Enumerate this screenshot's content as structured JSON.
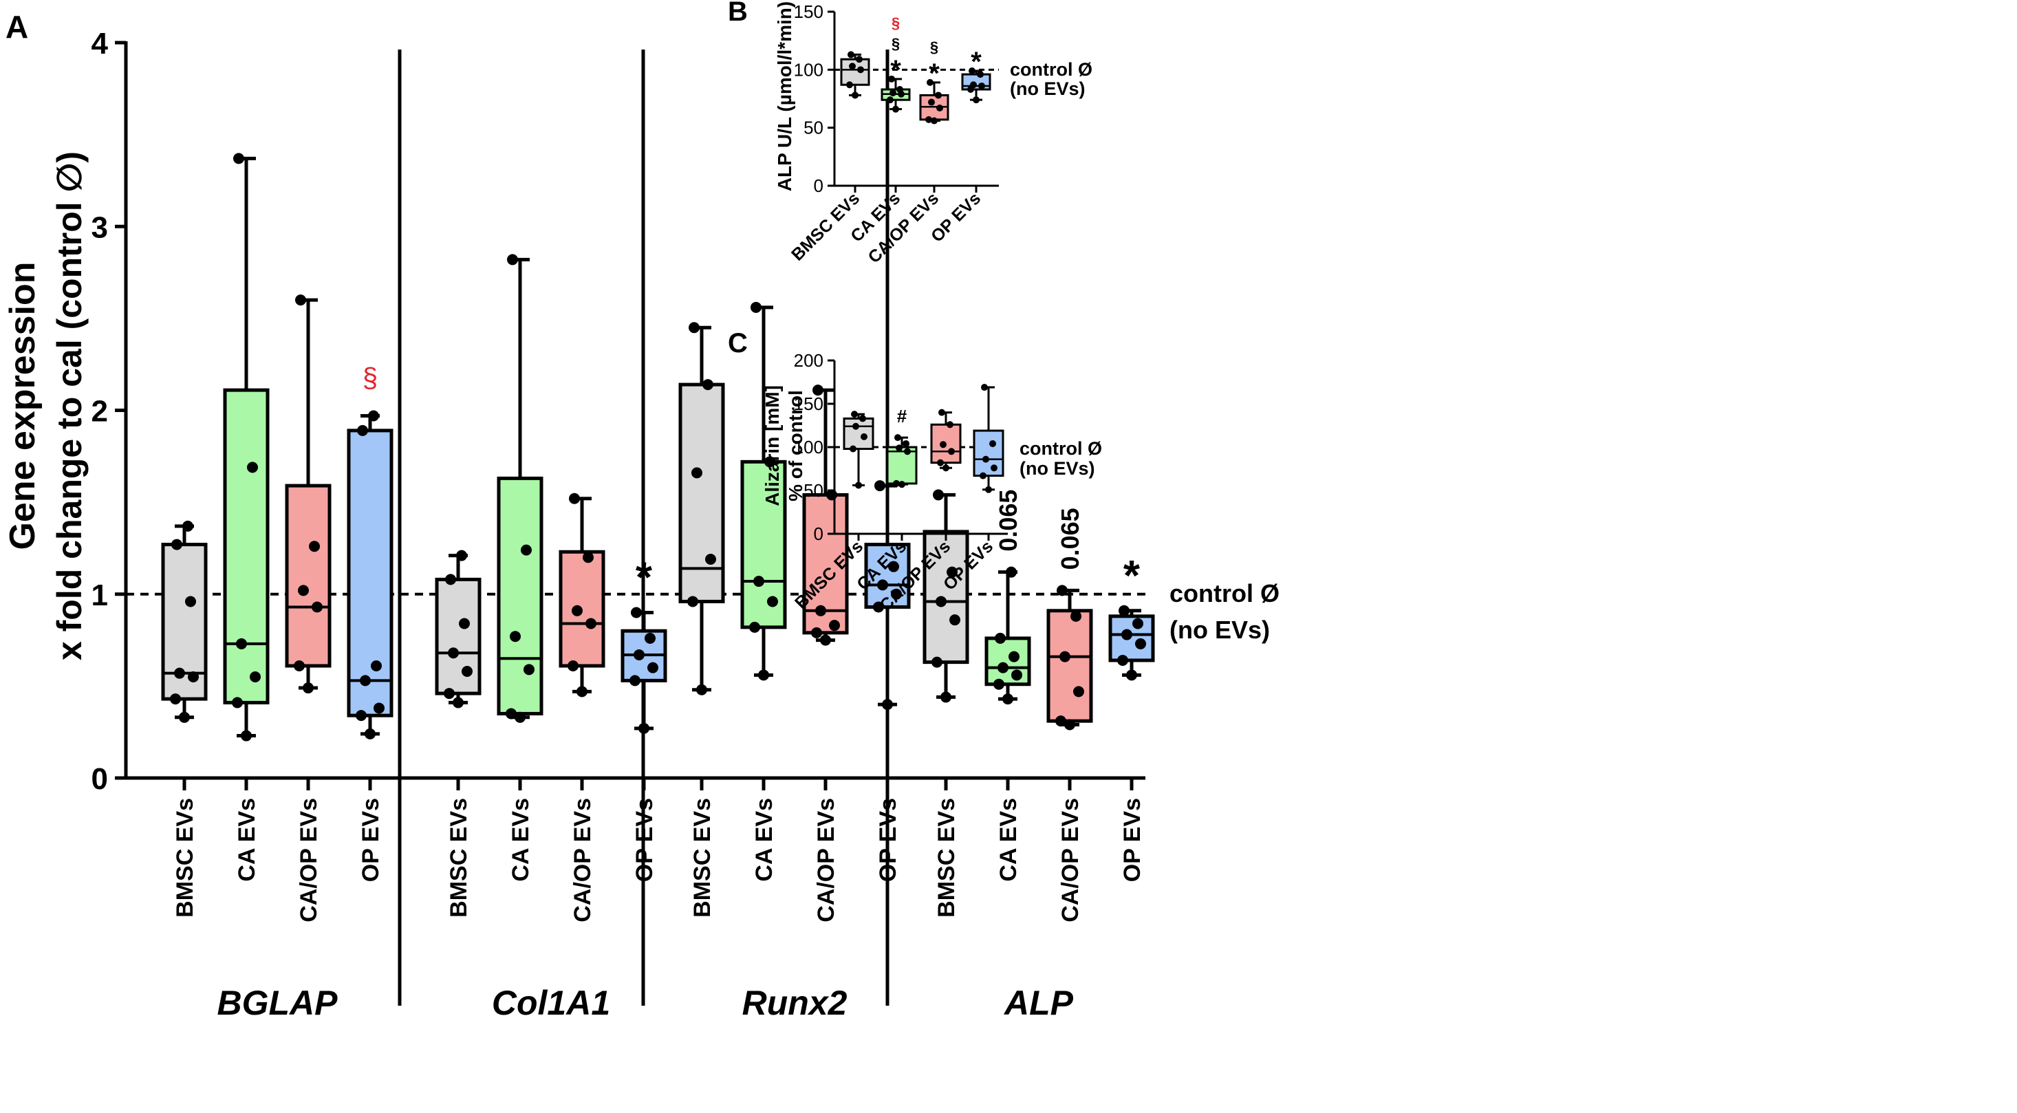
{
  "colors": {
    "BMSC EVs": "#d9d9d9",
    "CA EVs": "#a9f7a7",
    "CA/OP EVs": "#f5a3a1",
    "OP EVs": "#a2c6f7",
    "sig_red": "#e0262d",
    "axis": "#000000"
  },
  "groups": [
    "BMSC EVs",
    "CA EVs",
    "CA/OP EVs",
    "OP EVs"
  ],
  "control_label_line1": "control Ø",
  "control_label_line2": "(no EVs)",
  "chart_data": [
    {
      "panel": "A",
      "type": "box",
      "ylabel_line1": "Gene expression",
      "ylabel_line2": "x fold change to cal (control ∅)",
      "ylim": [
        0,
        4
      ],
      "yticks": [
        0,
        1,
        2,
        3,
        4
      ],
      "control_level": 1,
      "genes": [
        {
          "name": "BGLAP",
          "boxes": [
            {
              "group": "BMSC EVs",
              "min": 0.33,
              "q1": 0.43,
              "median": 0.57,
              "q3": 1.27,
              "max": 1.37,
              "points": [
                0.33,
                0.43,
                0.55,
                0.57,
                0.96,
                1.27,
                1.37
              ],
              "annotation": ""
            },
            {
              "group": "CA EVs",
              "min": 0.23,
              "q1": 0.41,
              "median": 0.73,
              "q3": 2.11,
              "max": 3.37,
              "points": [
                0.23,
                0.41,
                0.55,
                0.73,
                1.69,
                3.37
              ],
              "annotation": ""
            },
            {
              "group": "CA/OP EVs",
              "min": 0.49,
              "q1": 0.61,
              "median": 0.93,
              "q3": 1.59,
              "max": 2.6,
              "points": [
                0.49,
                0.61,
                0.93,
                1.02,
                1.26,
                2.6
              ],
              "annotation": ""
            },
            {
              "group": "OP EVs",
              "min": 0.24,
              "q1": 0.34,
              "median": 0.53,
              "q3": 1.89,
              "max": 1.97,
              "points": [
                0.24,
                0.34,
                0.38,
                0.53,
                0.61,
                1.89,
                1.97
              ],
              "annotation": "§",
              "annotation_color": "red"
            }
          ]
        },
        {
          "name": "Col1A1",
          "boxes": [
            {
              "group": "BMSC EVs",
              "min": 0.41,
              "q1": 0.46,
              "median": 0.68,
              "q3": 1.08,
              "max": 1.21,
              "points": [
                0.41,
                0.46,
                0.58,
                0.68,
                0.84,
                1.08,
                1.21
              ],
              "annotation": ""
            },
            {
              "group": "CA EVs",
              "min": 0.33,
              "q1": 0.35,
              "median": 0.65,
              "q3": 1.63,
              "max": 2.82,
              "points": [
                0.33,
                0.35,
                0.59,
                0.77,
                1.24,
                2.82
              ],
              "annotation": ""
            },
            {
              "group": "CA/OP EVs",
              "min": 0.47,
              "q1": 0.61,
              "median": 0.84,
              "q3": 1.23,
              "max": 1.52,
              "points": [
                0.47,
                0.61,
                0.84,
                0.91,
                1.2,
                1.52
              ],
              "annotation": ""
            },
            {
              "group": "OP EVs",
              "min": 0.27,
              "q1": 0.53,
              "median": 0.67,
              "q3": 0.8,
              "max": 0.9,
              "points": [
                0.27,
                0.53,
                0.6,
                0.67,
                0.76,
                0.9
              ],
              "annotation": "*"
            }
          ]
        },
        {
          "name": "Runx2",
          "boxes": [
            {
              "group": "BMSC EVs",
              "min": 0.48,
              "q1": 0.96,
              "median": 1.14,
              "q3": 2.14,
              "max": 2.45,
              "points": [
                0.48,
                0.96,
                1.19,
                1.66,
                2.14,
                2.45
              ],
              "annotation": ""
            },
            {
              "group": "CA EVs",
              "min": 0.56,
              "q1": 0.82,
              "median": 1.07,
              "q3": 1.72,
              "max": 2.56,
              "points": [
                0.56,
                0.82,
                0.96,
                1.07,
                1.72,
                2.56
              ],
              "annotation": ""
            },
            {
              "group": "CA/OP EVs",
              "min": 0.75,
              "q1": 0.79,
              "median": 0.91,
              "q3": 1.54,
              "max": 2.11,
              "points": [
                0.75,
                0.79,
                0.83,
                0.91,
                1.54,
                2.11
              ],
              "annotation": ""
            },
            {
              "group": "OP EVs",
              "min": 0.4,
              "q1": 0.93,
              "median": 1.05,
              "q3": 1.27,
              "max": 1.59,
              "points": [
                0.4,
                0.93,
                1.0,
                1.05,
                1.15,
                1.59
              ],
              "annotation": ""
            }
          ]
        },
        {
          "name": "ALP",
          "boxes": [
            {
              "group": "BMSC EVs",
              "min": 0.44,
              "q1": 0.63,
              "median": 0.96,
              "q3": 1.34,
              "max": 1.54,
              "points": [
                0.44,
                0.63,
                0.86,
                0.96,
                1.12,
                1.54
              ],
              "annotation": ""
            },
            {
              "group": "CA EVs",
              "min": 0.43,
              "q1": 0.51,
              "median": 0.6,
              "q3": 0.76,
              "max": 1.12,
              "points": [
                0.43,
                0.51,
                0.56,
                0.6,
                0.66,
                0.76,
                1.12
              ],
              "annotation": "0.065"
            },
            {
              "group": "CA/OP EVs",
              "min": 0.29,
              "q1": 0.31,
              "median": 0.66,
              "q3": 0.91,
              "max": 1.02,
              "points": [
                0.29,
                0.31,
                0.47,
                0.66,
                0.88,
                1.02
              ],
              "annotation": "0.065"
            },
            {
              "group": "OP EVs",
              "min": 0.56,
              "q1": 0.64,
              "median": 0.78,
              "q3": 0.88,
              "max": 0.91,
              "points": [
                0.56,
                0.64,
                0.73,
                0.78,
                0.84,
                0.91
              ],
              "annotation": "*"
            }
          ]
        }
      ]
    },
    {
      "panel": "B",
      "type": "box",
      "ylabel": "ALP U/L (µmol/l*min)",
      "ylim": [
        0,
        150
      ],
      "yticks": [
        0,
        50,
        100,
        150
      ],
      "control_level": 100,
      "boxes": [
        {
          "group": "BMSC EVs",
          "min": 78,
          "q1": 87,
          "median": 100,
          "q3": 109,
          "max": 113,
          "points": [
            78,
            87,
            100,
            103,
            109,
            113
          ],
          "annotations": []
        },
        {
          "group": "CA EVs",
          "min": 66,
          "q1": 74,
          "median": 79,
          "q3": 83,
          "max": 92,
          "points": [
            66,
            74,
            79,
            80,
            83,
            92
          ],
          "annotations": [
            {
              "text": "§",
              "color": "red"
            },
            {
              "text": "§",
              "color": "black"
            },
            {
              "text": "*",
              "color": "black"
            }
          ]
        },
        {
          "group": "CA/OP EVs",
          "min": 56,
          "q1": 57,
          "median": 68,
          "q3": 78,
          "max": 89,
          "points": [
            56,
            57,
            67,
            72,
            78,
            89
          ],
          "annotations": [
            {
              "text": "§",
              "color": "black"
            },
            {
              "text": "*",
              "color": "black"
            }
          ]
        },
        {
          "group": "OP EVs",
          "min": 74,
          "q1": 83,
          "median": 86,
          "q3": 96,
          "max": 99,
          "points": [
            74,
            83,
            86,
            87,
            96,
            99
          ],
          "annotations": [
            {
              "text": "*",
              "color": "black"
            }
          ]
        }
      ]
    },
    {
      "panel": "C",
      "type": "box",
      "ylabel_line1": "Alizarin [mM]",
      "ylabel_line2": "% of control",
      "ylim": [
        0,
        200
      ],
      "yticks": [
        0,
        50,
        100,
        150,
        200
      ],
      "control_level": 100,
      "boxes": [
        {
          "group": "BMSC EVs",
          "min": 56,
          "q1": 98,
          "median": 124,
          "q3": 133,
          "max": 138,
          "points": [
            56,
            98,
            112,
            124,
            133,
            138
          ],
          "annotations": []
        },
        {
          "group": "CA EVs",
          "min": 57,
          "q1": 58,
          "median": 95,
          "q3": 100,
          "max": 111,
          "points": [
            57,
            58,
            95,
            99,
            104,
            111
          ],
          "annotations": [
            {
              "text": "#",
              "color": "black"
            }
          ]
        },
        {
          "group": "CA/OP EVs",
          "min": 76,
          "q1": 82,
          "median": 95,
          "q3": 126,
          "max": 140,
          "points": [
            76,
            82,
            95,
            103,
            126,
            140
          ],
          "annotations": []
        },
        {
          "group": "OP EVs",
          "min": 51,
          "q1": 67,
          "median": 86,
          "q3": 119,
          "max": 169,
          "points": [
            51,
            67,
            76,
            86,
            104,
            169
          ],
          "annotations": []
        }
      ]
    }
  ]
}
